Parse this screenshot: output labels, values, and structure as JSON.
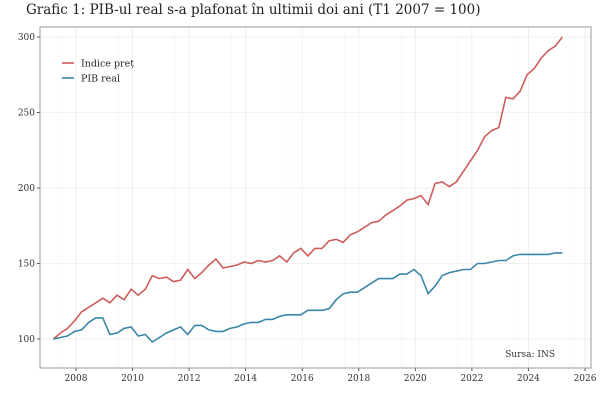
{
  "chart_data": {
    "type": "line",
    "title": "Grafic 1: PIB-ul real s-a plafonat în ultimii doi ani (T1 2007 = 100)",
    "source": "Sursa: INS",
    "xlabel": "",
    "ylabel": "",
    "xlim": [
      2007,
      2026
    ],
    "ylim": [
      80,
      310
    ],
    "x_ticks": [
      "2008",
      "2010",
      "2012",
      "2014",
      "2016",
      "2018",
      "2020",
      "2022",
      "2024",
      "2026"
    ],
    "y_ticks": [
      "100",
      "150",
      "200",
      "250",
      "300"
    ],
    "grid": true,
    "legend": "top-left",
    "x_start": "T1 2007",
    "x_end": "T1 2025",
    "frequency": "quarterly",
    "series": [
      {
        "name": "Indice preț",
        "color": "#cd5c5c",
        "values": [
          100,
          104,
          107,
          112,
          118,
          121,
          124,
          127,
          124,
          129,
          126,
          133,
          129,
          133,
          142,
          140,
          141,
          138,
          139,
          146,
          140,
          144,
          149,
          153,
          147,
          148,
          149,
          151,
          150,
          152,
          151,
          152,
          155,
          151,
          157,
          160,
          155,
          160,
          160,
          165,
          166,
          164,
          169,
          171,
          174,
          177,
          178,
          182,
          185,
          188,
          192,
          193,
          195,
          189,
          203,
          204,
          201,
          204,
          211,
          218,
          225,
          234,
          238,
          240,
          260,
          259,
          264,
          275,
          279,
          286,
          291,
          294,
          300
        ]
      },
      {
        "name": "PIB real",
        "color": "#3a86a8",
        "values": [
          100,
          101,
          102,
          105,
          106,
          111,
          114,
          114,
          103,
          104,
          107,
          108,
          102,
          103,
          98,
          101,
          104,
          106,
          108,
          103,
          109,
          109,
          106,
          105,
          105,
          107,
          108,
          110,
          111,
          111,
          113,
          113,
          115,
          116,
          116,
          116,
          119,
          119,
          119,
          120,
          126,
          130,
          131,
          131,
          134,
          137,
          140,
          140,
          140,
          143,
          143,
          146,
          142,
          130,
          135,
          142,
          144,
          145,
          146,
          146,
          150,
          150,
          151,
          152,
          152,
          155,
          156,
          156,
          156,
          156,
          156,
          157,
          157
        ]
      }
    ]
  }
}
